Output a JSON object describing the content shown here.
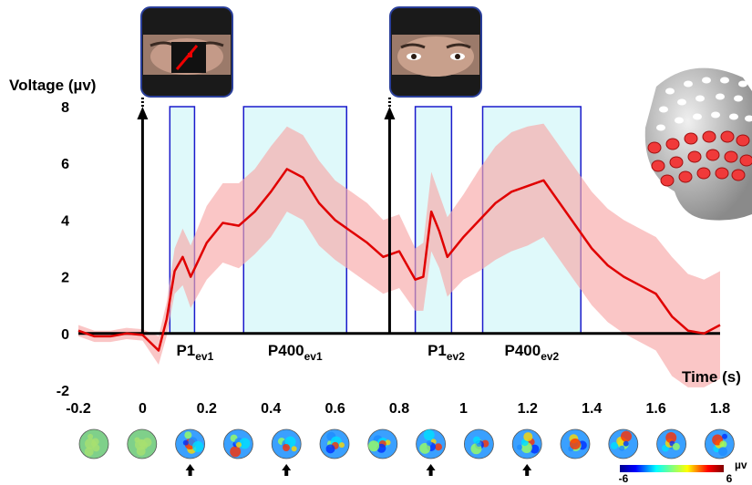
{
  "chart_data": {
    "type": "line",
    "y_label": "Voltage (µv)",
    "x_label": "Time (s)",
    "xlim": [
      -0.2,
      1.8
    ],
    "xticks": [
      -0.2,
      0,
      0.2,
      0.4,
      0.6,
      0.8,
      1,
      1.2,
      1.4,
      1.6,
      1.8
    ],
    "ylim": [
      -2,
      8
    ],
    "yticks": [
      -2,
      0,
      2,
      4,
      6,
      8
    ],
    "color": "#e00000",
    "band_color": "#f7a8a8",
    "x": [
      -0.2,
      -0.15,
      -0.1,
      -0.05,
      0,
      0.05,
      0.075,
      0.1,
      0.125,
      0.15,
      0.2,
      0.25,
      0.3,
      0.35,
      0.4,
      0.45,
      0.5,
      0.55,
      0.6,
      0.65,
      0.7,
      0.75,
      0.8,
      0.85,
      0.875,
      0.9,
      0.925,
      0.95,
      1.0,
      1.05,
      1.1,
      1.15,
      1.2,
      1.25,
      1.3,
      1.35,
      1.4,
      1.45,
      1.5,
      1.55,
      1.6,
      1.65,
      1.7,
      1.75,
      1.8
    ],
    "values": [
      0.1,
      -0.1,
      -0.1,
      0,
      -0.05,
      -0.6,
      0.5,
      2.2,
      2.7,
      2.0,
      3.2,
      3.9,
      3.8,
      4.3,
      5.0,
      5.8,
      5.5,
      4.6,
      4.0,
      3.6,
      3.2,
      2.7,
      2.9,
      1.9,
      2.0,
      4.3,
      3.6,
      2.7,
      3.4,
      4.0,
      4.6,
      5.0,
      5.2,
      5.4,
      4.6,
      3.8,
      3.0,
      2.4,
      2.0,
      1.7,
      1.4,
      0.6,
      0.1,
      0.0,
      0.3
    ],
    "band_upper": [
      0.3,
      0.1,
      0.1,
      0.2,
      0.15,
      -0.1,
      1.1,
      3.0,
      3.7,
      3.1,
      4.5,
      5.3,
      5.3,
      5.8,
      6.6,
      7.3,
      7.0,
      6.1,
      5.4,
      5.0,
      4.6,
      4.0,
      4.2,
      3.0,
      3.2,
      5.7,
      4.9,
      4.1,
      4.9,
      5.8,
      6.6,
      7.1,
      7.3,
      7.4,
      6.6,
      5.8,
      5.0,
      4.4,
      4.0,
      3.7,
      3.4,
      2.7,
      2.1,
      1.9,
      2.2
    ],
    "band_lower": [
      -0.1,
      -0.3,
      -0.3,
      -0.2,
      -0.25,
      -1.1,
      -0.1,
      1.4,
      1.7,
      0.9,
      1.9,
      2.5,
      2.3,
      2.8,
      3.4,
      4.3,
      4.0,
      3.1,
      2.6,
      2.2,
      1.8,
      1.4,
      1.6,
      0.8,
      0.8,
      2.9,
      2.3,
      1.3,
      1.9,
      2.2,
      2.6,
      2.9,
      3.1,
      3.4,
      2.6,
      1.8,
      1.0,
      0.4,
      0.0,
      -0.3,
      -0.6,
      -1.5,
      -1.9,
      -1.9,
      -1.6
    ],
    "events": [
      0,
      0.77
    ],
    "windows": [
      {
        "label": "P1",
        "sub": "ev1",
        "start": 0.085,
        "end": 0.162
      },
      {
        "label": "P400",
        "sub": "ev1",
        "start": 0.315,
        "end": 0.636
      },
      {
        "label": "P1",
        "sub": "ev2",
        "start": 0.85,
        "end": 0.963
      },
      {
        "label": "P400",
        "sub": "ev2",
        "start": 1.06,
        "end": 1.366
      }
    ],
    "colorbar": {
      "ticks": [
        -6,
        6
      ],
      "unit": "µv"
    }
  }
}
